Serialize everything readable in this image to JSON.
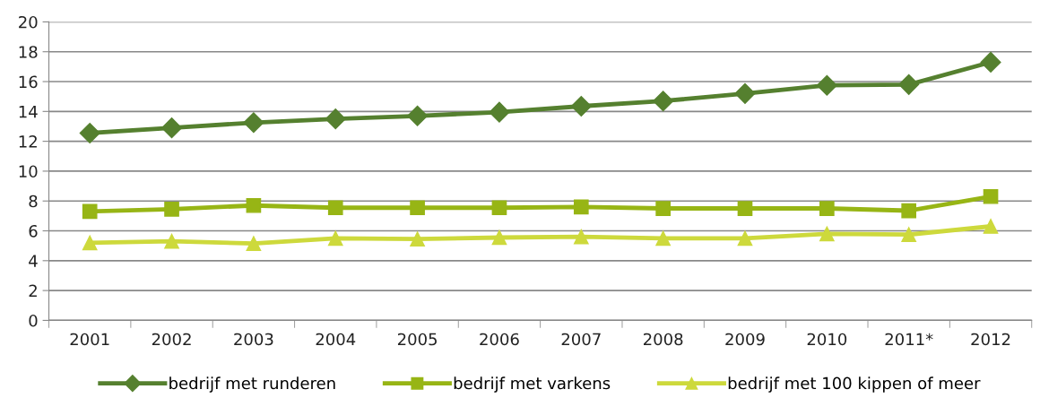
{
  "chart_data": {
    "type": "line",
    "categories": [
      "2001",
      "2002",
      "2003",
      "2004",
      "2005",
      "2006",
      "2007",
      "2008",
      "2009",
      "2010",
      "2011*",
      "2012"
    ],
    "series": [
      {
        "name": "bedrijf met runderen",
        "color": "#55802f",
        "marker": "diamond",
        "values": [
          12.55,
          12.9,
          13.25,
          13.5,
          13.7,
          13.95,
          14.35,
          14.7,
          15.2,
          15.75,
          15.8,
          17.3
        ]
      },
      {
        "name": "bedrijf met varkens",
        "color": "#97b515",
        "marker": "square",
        "values": [
          7.3,
          7.45,
          7.7,
          7.55,
          7.55,
          7.55,
          7.6,
          7.5,
          7.5,
          7.5,
          7.35,
          8.3
        ]
      },
      {
        "name": "bedrijf met 100 kippen of meer",
        "color": "#cdd93c",
        "marker": "triangle",
        "values": [
          5.2,
          5.3,
          5.15,
          5.5,
          5.45,
          5.55,
          5.6,
          5.5,
          5.5,
          5.8,
          5.75,
          6.3
        ]
      }
    ],
    "ylim": [
      0,
      20
    ],
    "yticks": [
      0,
      2,
      4,
      6,
      8,
      10,
      12,
      14,
      16,
      18,
      20
    ],
    "grid": "y",
    "legend": "bottom",
    "line_style": "solid"
  }
}
